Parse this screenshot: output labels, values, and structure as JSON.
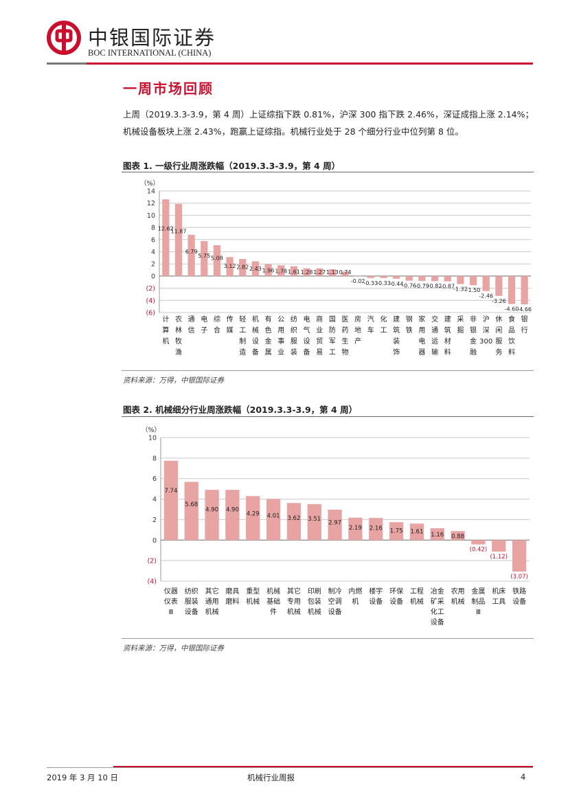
{
  "header": {
    "brand_cn": "中银国际证券",
    "brand_en": "BOC INTERNATIONAL (CHINA)",
    "logo_icon": "boc-logo-icon",
    "brand_color": "#c8102e"
  },
  "section_title": "一周市场回顾",
  "intro": "上周（2019.3.3-3.9，第 4 周）上证综指下跌 0.81%，沪深 300 指下跌 2.46%，深证成指上涨 2.14%；机械设备板块上涨 2.43%，跑赢上证综指。机械行业处于 28 个细分行业中位列第 8 位。",
  "figure1": {
    "title": "图表 1. 一级行业周涨跌幅（2019.3.3-3.9，第 4 周）",
    "source": "资料来源：万得，中银国际证券"
  },
  "figure2": {
    "title": "图表 2. 机械细分行业周涨跌幅（2019.3.3-3.9，第 4 周）",
    "source": "资料来源：万得，中银国际证券"
  },
  "chart_data": [
    {
      "type": "bar",
      "ylabel": "（%）",
      "ylim": [
        -6,
        14
      ],
      "yticks": [
        "14",
        "12",
        "10",
        "8",
        "6",
        "4",
        "2",
        "0",
        "(2)",
        "(4)",
        "(6)"
      ],
      "grid": true,
      "bar_color": "#e8a3a3",
      "categories": [
        "计算机",
        "农林牧渔",
        "通信",
        "电子",
        "综合",
        "传媒",
        "轻工制造",
        "机械设备",
        "有色金属",
        "公用事业",
        "纺织服装",
        "电气设备",
        "商业贸易",
        "国防军工",
        "医药生物",
        "房地产",
        "汽车",
        "化工",
        "建筑装饰",
        "钢铁",
        "家用电器",
        "交通运输",
        "建筑材料",
        "采掘",
        "非银金融",
        "沪深300",
        "休闲服务",
        "食品饮料",
        "银行"
      ],
      "values": [
        12.62,
        11.87,
        6.79,
        5.75,
        5.08,
        3.12,
        2.82,
        2.43,
        1.96,
        1.78,
        1.61,
        1.28,
        1.27,
        1.13,
        0.74,
        -0.02,
        -0.33,
        -0.33,
        -0.44,
        -0.76,
        -0.79,
        -0.82,
        -0.87,
        -1.32,
        -1.5,
        -2.46,
        -3.26,
        -4.6,
        -4.66
      ],
      "labels": [
        "12.62",
        "11.87",
        "6.79",
        "5.75",
        "5.08",
        "3.12",
        "2.82",
        "2.43",
        "1.96",
        "1.78",
        "1.61",
        "1.28",
        "1.27",
        "1.13",
        "0.74",
        "-0.02",
        "-0.33",
        "-0.33",
        "-0.44",
        "-0.76",
        "-0.79",
        "-0.82",
        "-0.87",
        "-1.32",
        "-1.50",
        "-2.46",
        "-3.26",
        "-4.60",
        "-4.66"
      ]
    },
    {
      "type": "bar",
      "ylabel": "（%）",
      "ylim": [
        -4,
        10
      ],
      "yticks": [
        "10",
        "8",
        "6",
        "4",
        "2",
        "0",
        "(2)",
        "(4)"
      ],
      "grid": true,
      "bar_color": "#e8a3a3",
      "categories": [
        "仪器仪表Ⅲ",
        "纺织服装设备",
        "其它通用机械",
        "磨具磨料",
        "重型机械",
        "机械基础件",
        "其它专用机械",
        "印刷包装机械",
        "制冷空调设备",
        "内燃机",
        "楼宇设备",
        "环保设备",
        "工程机械",
        "冶金矿采化工设备",
        "农用机械",
        "金属制品Ⅲ",
        "机床工具",
        "铁路设备"
      ],
      "values": [
        7.74,
        5.68,
        4.9,
        4.9,
        4.29,
        4.01,
        3.62,
        3.51,
        2.97,
        2.19,
        2.16,
        1.75,
        1.61,
        1.16,
        0.88,
        -0.42,
        -1.12,
        -3.07
      ],
      "labels": [
        "7.74",
        "5.68",
        "4.90",
        "4.90",
        "4.29",
        "4.01",
        "3.62",
        "3.51",
        "2.97",
        "2.19",
        "2.16",
        "1.75",
        "1.61",
        "1.16",
        "0.88",
        "(0.42)",
        "(1.12)",
        "(3.07)"
      ]
    }
  ],
  "footer": {
    "date": "2019 年 3 月 10 日",
    "title": "机械行业周报",
    "page": "4"
  }
}
